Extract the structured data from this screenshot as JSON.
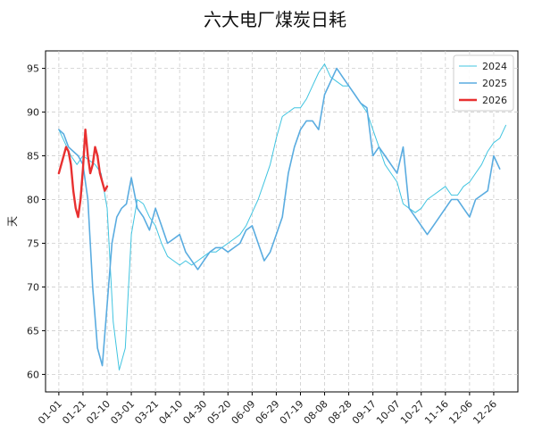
{
  "chart_data": {
    "type": "line",
    "title": "六大电厂煤炭日耗",
    "xlabel": "",
    "ylabel": "天",
    "ylim": [
      58,
      97
    ],
    "xlim": [
      -11,
      380
    ],
    "grid": true,
    "legend_position": "top-right",
    "x_tick_labels": [
      "01-01",
      "01-21",
      "02-10",
      "03-01",
      "03-21",
      "04-10",
      "04-30",
      "05-20",
      "06-09",
      "06-29",
      "07-19",
      "08-08",
      "08-28",
      "09-17",
      "10-07",
      "10-27",
      "11-16",
      "12-06",
      "12-26"
    ],
    "x_tick_values": [
      0,
      20,
      40,
      60,
      80,
      100,
      120,
      140,
      160,
      180,
      200,
      220,
      240,
      260,
      280,
      300,
      320,
      340,
      360
    ],
    "y_ticks": [
      60,
      65,
      70,
      75,
      80,
      85,
      90,
      95
    ],
    "series": [
      {
        "name": "2024",
        "color": "#40c4e0",
        "width": 1,
        "x": [
          0,
          5,
          10,
          15,
          20,
          25,
          30,
          35,
          40,
          45,
          50,
          55,
          60,
          65,
          70,
          75,
          80,
          85,
          90,
          95,
          100,
          105,
          110,
          115,
          120,
          125,
          130,
          135,
          140,
          145,
          150,
          155,
          160,
          165,
          170,
          175,
          180,
          185,
          190,
          195,
          200,
          205,
          210,
          215,
          220,
          225,
          230,
          235,
          240,
          245,
          250,
          255,
          260,
          265,
          270,
          275,
          280,
          285,
          290,
          295,
          300,
          305,
          310,
          315,
          320,
          325,
          330,
          335,
          340,
          345,
          350,
          355,
          360,
          365,
          370
        ],
        "values": [
          88,
          86.5,
          85,
          84,
          85,
          84.5,
          84,
          83,
          79,
          66,
          60.5,
          63,
          76,
          80,
          79.5,
          78,
          77,
          75,
          73.5,
          73,
          72.5,
          73,
          72.5,
          73,
          73.5,
          74,
          74,
          74.5,
          75,
          75.5,
          76,
          77,
          78.5,
          80,
          82,
          84,
          87,
          89.5,
          90,
          90.5,
          90.5,
          91.5,
          93,
          94.5,
          95.5,
          94,
          93.5,
          93,
          93,
          92,
          91,
          90,
          88,
          86,
          84,
          83,
          82,
          79.5,
          79,
          78.5,
          79,
          80,
          80.5,
          81,
          81.5,
          80.5,
          80.5,
          81.5,
          82,
          83,
          84,
          85.5,
          86.5,
          87,
          88.5
        ]
      },
      {
        "name": "2025",
        "color": "#5aace0",
        "width": 1.6,
        "x": [
          0,
          4,
          8,
          12,
          16,
          20,
          24,
          28,
          32,
          36,
          40,
          44,
          48,
          52,
          56,
          60,
          65,
          70,
          75,
          80,
          85,
          90,
          95,
          100,
          105,
          110,
          115,
          120,
          125,
          130,
          135,
          140,
          145,
          150,
          155,
          160,
          165,
          170,
          175,
          180,
          185,
          190,
          195,
          200,
          205,
          210,
          215,
          220,
          225,
          230,
          235,
          240,
          245,
          250,
          255,
          260,
          265,
          270,
          275,
          280,
          285,
          290,
          295,
          300,
          305,
          310,
          315,
          320,
          325,
          330,
          335,
          340,
          345,
          350,
          355,
          360,
          365
        ],
        "values": [
          88,
          87.5,
          86,
          85.5,
          85,
          84,
          80,
          70,
          63,
          61,
          68,
          75,
          78,
          79,
          79.5,
          82.5,
          79,
          78,
          76.5,
          79,
          77,
          75,
          75.5,
          76,
          74,
          73,
          72,
          73,
          74,
          74.5,
          74.5,
          74,
          74.5,
          75,
          76.5,
          77,
          75,
          73,
          74,
          76,
          78,
          83,
          86,
          88,
          89,
          89,
          88,
          92,
          93.5,
          95,
          94,
          93,
          92,
          91,
          90.5,
          85,
          86,
          85,
          84,
          83,
          86,
          79,
          78,
          77,
          76,
          77,
          78,
          79,
          80,
          80,
          79,
          78,
          80,
          80.5,
          81,
          85,
          83.5
        ]
      },
      {
        "name": "2026",
        "color": "#e83030",
        "width": 2.4,
        "x": [
          0,
          2,
          4,
          6,
          8,
          10,
          12,
          14,
          16,
          18,
          20,
          22,
          24,
          26,
          28,
          30,
          32,
          34,
          36,
          38,
          40
        ],
        "values": [
          83,
          84,
          85,
          86,
          85.5,
          84,
          81,
          79,
          78,
          80,
          83.5,
          88,
          85,
          83,
          84,
          86,
          85,
          83,
          82,
          81,
          81.5
        ]
      }
    ]
  }
}
